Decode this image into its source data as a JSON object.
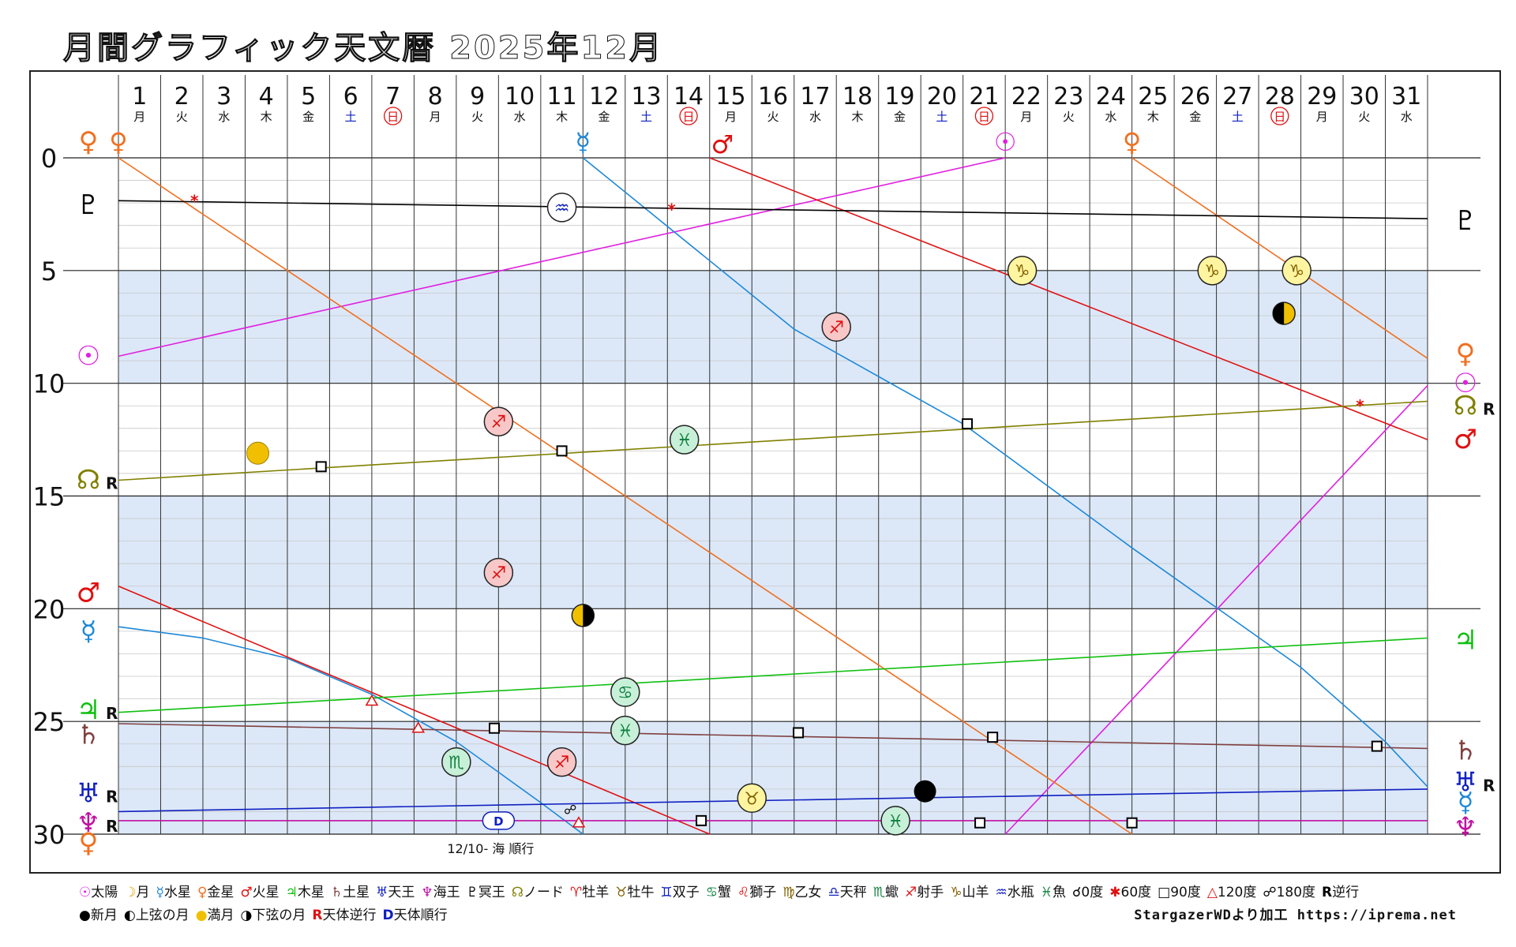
{
  "title": "月間グラフィック天文暦 2025年12月",
  "days": [
    "1",
    "2",
    "3",
    "4",
    "5",
    "6",
    "7",
    "8",
    "9",
    "10",
    "11",
    "12",
    "13",
    "14",
    "15",
    "16",
    "17",
    "18",
    "19",
    "20",
    "21",
    "22",
    "23",
    "24",
    "25",
    "26",
    "27",
    "28",
    "29",
    "30",
    "31"
  ],
  "weekdays": [
    "月",
    "火",
    "水",
    "木",
    "金",
    "土",
    "日",
    "月",
    "火",
    "水",
    "木",
    "金",
    "土",
    "日",
    "月",
    "火",
    "水",
    "木",
    "金",
    "土",
    "日",
    "月",
    "火",
    "水",
    "木",
    "金",
    "土",
    "日",
    "月",
    "火",
    "水"
  ],
  "colors": {
    "sun": "#e020e0",
    "mercury": "#1e88d8",
    "venus": "#f07020",
    "mars": "#e01010",
    "jupiter": "#10c010",
    "saturn": "#804040",
    "uranus": "#1020c0",
    "neptune": "#c010a0",
    "pluto": "#000000",
    "node": "#808000",
    "band": "#dce8f8"
  },
  "chart_data": {
    "type": "line",
    "x_range": [
      1,
      32
    ],
    "y_range": [
      0,
      30
    ],
    "y_ticks": [
      "0",
      "5",
      "10",
      "15",
      "20",
      "25",
      "30"
    ],
    "series": [
      {
        "name": "太陽",
        "key": "sun",
        "points": [
          [
            1,
            8.8
          ],
          [
            22,
            0.0
          ]
        ],
        "wrap": [
          [
            22,
            30.0
          ],
          [
            32,
            10.1
          ]
        ]
      },
      {
        "name": "水星",
        "key": "mercury",
        "points": [
          [
            1,
            20.8
          ],
          [
            3,
            21.3
          ],
          [
            5,
            22.2
          ],
          [
            7,
            23.8
          ],
          [
            9,
            25.9
          ],
          [
            11,
            28.6
          ],
          [
            12,
            30.0
          ]
        ],
        "wrap": [
          [
            12,
            0.0
          ],
          [
            17,
            7.6
          ],
          [
            21,
            11.8
          ],
          [
            25,
            17.3
          ],
          [
            29,
            22.6
          ],
          [
            31,
            25.9
          ],
          [
            32,
            27.9
          ]
        ]
      },
      {
        "name": "金星",
        "key": "venus",
        "points": [
          [
            1,
            0.0
          ],
          [
            25,
            30.0
          ]
        ],
        "wrap": [
          [
            25,
            0.0
          ],
          [
            32,
            8.9
          ]
        ]
      },
      {
        "name": "火星",
        "key": "mars",
        "points": [
          [
            1,
            19.0
          ],
          [
            15,
            30.0
          ]
        ],
        "wrap": [
          [
            15,
            0.0
          ],
          [
            32,
            12.5
          ]
        ]
      },
      {
        "name": "木星",
        "key": "jupiter",
        "points": [
          [
            1,
            24.6
          ],
          [
            32,
            21.3
          ]
        ]
      },
      {
        "name": "土星",
        "key": "saturn",
        "points": [
          [
            1,
            25.1
          ],
          [
            32,
            26.2
          ]
        ]
      },
      {
        "name": "天王星",
        "key": "uranus",
        "points": [
          [
            1,
            29.0
          ],
          [
            32,
            28.0
          ]
        ]
      },
      {
        "name": "海王星",
        "key": "neptune",
        "points": [
          [
            1,
            29.4
          ],
          [
            32,
            29.4
          ]
        ]
      },
      {
        "name": "冥王星",
        "key": "pluto",
        "points": [
          [
            1,
            1.9
          ],
          [
            32,
            2.7
          ]
        ]
      },
      {
        "name": "ノード",
        "key": "node",
        "points": [
          [
            1,
            14.3
          ],
          [
            32,
            10.8
          ]
        ]
      }
    ],
    "left_labels": [
      {
        "sym": "♀",
        "key": "venus",
        "y": -0.8,
        "r": ""
      },
      {
        "sym": "♇",
        "key": "pluto",
        "y": 2.0,
        "r": ""
      },
      {
        "sym": "☉",
        "key": "sun",
        "y": 8.7,
        "r": ""
      },
      {
        "sym": "☊",
        "key": "node",
        "y": 14.2,
        "r": "R"
      },
      {
        "sym": "♂",
        "key": "mars",
        "y": 19.2,
        "r": ""
      },
      {
        "sym": "☿",
        "key": "mercury",
        "y": 20.9,
        "r": ""
      },
      {
        "sym": "♃",
        "key": "jupiter",
        "y": 24.4,
        "r": "R"
      },
      {
        "sym": "♄",
        "key": "saturn",
        "y": 25.5,
        "r": ""
      },
      {
        "sym": "♅",
        "key": "uranus",
        "y": 28.1,
        "r": "R"
      },
      {
        "sym": "♆",
        "key": "neptune",
        "y": 29.4,
        "r": "R"
      },
      {
        "sym": "♀",
        "key": "venus",
        "y": 30.3,
        "r": ""
      }
    ],
    "right_labels": [
      {
        "sym": "♇",
        "key": "pluto",
        "y": 2.7,
        "r": ""
      },
      {
        "sym": "♀",
        "key": "venus",
        "y": 8.6,
        "r": ""
      },
      {
        "sym": "☉",
        "key": "sun",
        "y": 9.9,
        "r": ""
      },
      {
        "sym": "☊",
        "key": "node",
        "y": 10.9,
        "r": "R"
      },
      {
        "sym": "♂",
        "key": "mars",
        "y": 12.4,
        "r": ""
      },
      {
        "sym": "♃",
        "key": "jupiter",
        "y": 21.3,
        "r": ""
      },
      {
        "sym": "♄",
        "key": "saturn",
        "y": 26.2,
        "r": ""
      },
      {
        "sym": "♅",
        "key": "uranus",
        "y": 27.6,
        "r": "R"
      },
      {
        "sym": "☿",
        "key": "mercury",
        "y": 28.5,
        "r": ""
      },
      {
        "sym": "♆",
        "key": "neptune",
        "y": 29.6,
        "r": ""
      }
    ],
    "top_labels": [
      {
        "sym": "♀",
        "key": "venus",
        "x": 1,
        "y": -0.8
      },
      {
        "sym": "☿",
        "key": "mercury",
        "x": 12,
        "y": -0.8
      },
      {
        "sym": "♂",
        "key": "mars",
        "x": 15.3,
        "y": -0.7
      },
      {
        "sym": "☉",
        "key": "sun",
        "x": 22,
        "y": -0.8
      },
      {
        "sym": "♀",
        "key": "venus",
        "x": 25,
        "y": -0.8
      }
    ],
    "ingress": [
      {
        "sign": "♒",
        "x": 11.5,
        "y": 2.2,
        "fill": "#ffffff",
        "color": "#1020c0"
      },
      {
        "sign": "♑",
        "x": 22.4,
        "y": 5.0,
        "fill": "#fff5a0",
        "color": "#806000"
      },
      {
        "sign": "♑",
        "x": 26.9,
        "y": 5.0,
        "fill": "#fff5a0",
        "color": "#806000"
      },
      {
        "sign": "♑",
        "x": 28.9,
        "y": 5.0,
        "fill": "#fff5a0",
        "color": "#806000"
      },
      {
        "sign": "♐",
        "x": 18.0,
        "y": 7.5,
        "fill": "#f8c8c8",
        "color": "#e01010"
      },
      {
        "sign": "♐",
        "x": 10.0,
        "y": 11.7,
        "fill": "#f8c8c8",
        "color": "#e01010"
      },
      {
        "sign": "♓",
        "x": 14.4,
        "y": 12.5,
        "fill": "#c8f0d8",
        "color": "#108040"
      },
      {
        "sign": "♐",
        "x": 10.0,
        "y": 18.4,
        "fill": "#f8c8c8",
        "color": "#e01010"
      },
      {
        "sign": "♋",
        "x": 13.0,
        "y": 23.7,
        "fill": "#c8f0d8",
        "color": "#108040"
      },
      {
        "sign": "♓",
        "x": 13.0,
        "y": 25.4,
        "fill": "#c8f0d8",
        "color": "#108040"
      },
      {
        "sign": "♏",
        "x": 9.0,
        "y": 26.8,
        "fill": "#c8f0d8",
        "color": "#108040"
      },
      {
        "sign": "♐",
        "x": 11.5,
        "y": 26.8,
        "fill": "#f8c8c8",
        "color": "#e01010"
      },
      {
        "sign": "♉",
        "x": 16.0,
        "y": 28.4,
        "fill": "#fff5a0",
        "color": "#806000"
      },
      {
        "sign": "♓",
        "x": 19.4,
        "y": 29.4,
        "fill": "#c8f0d8",
        "color": "#108040"
      }
    ],
    "moon_phases": [
      {
        "phase": "full",
        "x": 4.3,
        "y": 13.1
      },
      {
        "phase": "last",
        "x": 12.0,
        "y": 20.3
      },
      {
        "phase": "new",
        "x": 20.1,
        "y": 28.1
      },
      {
        "phase": "first",
        "x": 28.6,
        "y": 6.9
      }
    ],
    "aspects": [
      {
        "type": "sextile",
        "x": 2.8,
        "y": 1.9,
        "color": "#e01010"
      },
      {
        "type": "sextile",
        "x": 14.1,
        "y": 2.3,
        "color": "#e01010"
      },
      {
        "type": "sextile",
        "x": 30.4,
        "y": 11.0,
        "color": "#e01010"
      },
      {
        "type": "square",
        "x": 5.8,
        "y": 13.7
      },
      {
        "type": "square",
        "x": 11.5,
        "y": 13.0
      },
      {
        "type": "square",
        "x": 21.1,
        "y": 11.8
      },
      {
        "type": "square",
        "x": 9.9,
        "y": 25.3
      },
      {
        "type": "square",
        "x": 17.1,
        "y": 25.5
      },
      {
        "type": "square",
        "x": 21.7,
        "y": 25.7
      },
      {
        "type": "square",
        "x": 30.8,
        "y": 26.1
      },
      {
        "type": "square",
        "x": 14.8,
        "y": 29.4
      },
      {
        "type": "square",
        "x": 21.4,
        "y": 29.5
      },
      {
        "type": "square",
        "x": 25.0,
        "y": 29.5
      },
      {
        "type": "trine",
        "x": 7.0,
        "y": 24.1
      },
      {
        "type": "trine",
        "x": 8.1,
        "y": 25.3
      },
      {
        "type": "trine",
        "x": 11.9,
        "y": 29.5
      },
      {
        "type": "opposition",
        "x": 11.7,
        "y": 28.9
      }
    ],
    "direct_label": {
      "badge": "D",
      "text": "12/10- 海 順行",
      "x": 10.0,
      "y": 29.4
    }
  },
  "legend": {
    "line1": [
      {
        "sym": "☉",
        "text": "太陽",
        "color": "#e020e0"
      },
      {
        "sym": "☽",
        "text": "月",
        "color": "#e0a000"
      },
      {
        "sym": "☿",
        "text": "水星",
        "color": "#1e88d8"
      },
      {
        "sym": "♀",
        "text": "金星",
        "color": "#f07020"
      },
      {
        "sym": "♂",
        "text": "火星",
        "color": "#e01010"
      },
      {
        "sym": "♃",
        "text": "木星",
        "color": "#10c010"
      },
      {
        "sym": "♄",
        "text": "土星",
        "color": "#804040"
      },
      {
        "sym": "♅",
        "text": "天王",
        "color": "#1020c0"
      },
      {
        "sym": "♆",
        "text": "海王",
        "color": "#c010a0"
      },
      {
        "sym": "♇",
        "text": "冥王",
        "color": "#000000"
      },
      {
        "sym": "☊",
        "text": "ノード",
        "color": "#808000"
      },
      {
        "sym": "♈",
        "text": "牡羊",
        "color": "#e01010"
      },
      {
        "sym": "♉",
        "text": "牡牛",
        "color": "#806000"
      },
      {
        "sym": "♊",
        "text": "双子",
        "color": "#1020c0"
      },
      {
        "sym": "♋",
        "text": "蟹",
        "color": "#108040"
      },
      {
        "sym": "♌",
        "text": "獅子",
        "color": "#e01010"
      },
      {
        "sym": "♍",
        "text": "乙女",
        "color": "#806000"
      },
      {
        "sym": "♎",
        "text": "天秤",
        "color": "#1020c0"
      },
      {
        "sym": "♏",
        "text": "蠍",
        "color": "#108040"
      },
      {
        "sym": "♐",
        "text": "射手",
        "color": "#e01010"
      },
      {
        "sym": "♑",
        "text": "山羊",
        "color": "#806000"
      },
      {
        "sym": "♒",
        "text": "水瓶",
        "color": "#1020c0"
      },
      {
        "sym": "♓",
        "text": "魚",
        "color": "#108040"
      },
      {
        "sym": "☌",
        "text": "0度",
        "color": "#000000"
      },
      {
        "sym": "✱",
        "text": "60度",
        "color": "#e01010"
      },
      {
        "sym": "□",
        "text": "90度",
        "color": "#000000"
      },
      {
        "sym": "△",
        "text": "120度",
        "color": "#e01010"
      },
      {
        "sym": "☍",
        "text": "180度",
        "color": "#000000"
      },
      {
        "sym": "R",
        "text": "逆行",
        "color": "#000000"
      }
    ],
    "line2": [
      {
        "sym": "●",
        "text": "新月",
        "color": "#000000"
      },
      {
        "sym": "◐",
        "text": "上弦の月",
        "color": "#000000"
      },
      {
        "sym": "●",
        "text": "満月",
        "color": "#f0c000"
      },
      {
        "sym": "◑",
        "text": "下弦の月",
        "color": "#000000"
      },
      {
        "sym": "R",
        "text": "天体逆行",
        "color": "#e01010"
      },
      {
        "sym": "D",
        "text": "天体順行",
        "color": "#1020c0"
      }
    ],
    "credit": "StargazerWDより加工  https://iprema.net"
  }
}
